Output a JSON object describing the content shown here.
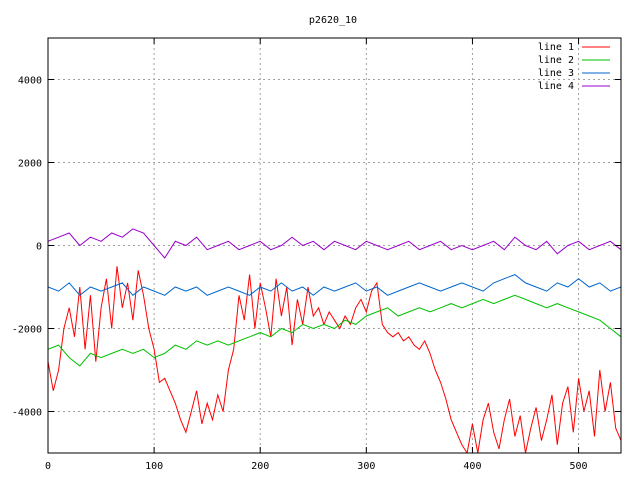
{
  "chart_data": {
    "type": "line",
    "title": "p2620_10",
    "xlabel": "",
    "ylabel": "",
    "xlim": [
      0,
      540
    ],
    "ylim": [
      -5000,
      5000
    ],
    "x_ticks": [
      0,
      100,
      200,
      300,
      400,
      500
    ],
    "y_ticks": [
      -4000,
      -2000,
      0,
      2000,
      4000
    ],
    "grid": true,
    "legend_position": "top-right",
    "series": [
      {
        "name": "line 1",
        "color": "#ff0000",
        "x": [
          0,
          5,
          10,
          15,
          20,
          25,
          30,
          35,
          40,
          45,
          50,
          55,
          60,
          65,
          70,
          75,
          80,
          85,
          90,
          95,
          100,
          105,
          110,
          115,
          120,
          125,
          130,
          135,
          140,
          145,
          150,
          155,
          160,
          165,
          170,
          175,
          180,
          185,
          190,
          195,
          200,
          205,
          210,
          215,
          220,
          225,
          230,
          235,
          240,
          245,
          250,
          255,
          260,
          265,
          270,
          275,
          280,
          285,
          290,
          295,
          300,
          305,
          310,
          315,
          320,
          325,
          330,
          335,
          340,
          345,
          350,
          355,
          360,
          365,
          370,
          375,
          380,
          385,
          390,
          395,
          400,
          405,
          410,
          415,
          420,
          425,
          430,
          435,
          440,
          445,
          450,
          455,
          460,
          465,
          470,
          475,
          480,
          485,
          490,
          495,
          500,
          505,
          510,
          515,
          520,
          525,
          530,
          535,
          540
        ],
        "values": [
          -2800,
          -3500,
          -3000,
          -2000,
          -1500,
          -2200,
          -1000,
          -2500,
          -1200,
          -2800,
          -1500,
          -800,
          -2000,
          -500,
          -1500,
          -900,
          -1800,
          -600,
          -1200,
          -2000,
          -2500,
          -3300,
          -3200,
          -3500,
          -3800,
          -4200,
          -4500,
          -4000,
          -3500,
          -4300,
          -3800,
          -4200,
          -3600,
          -4000,
          -3000,
          -2500,
          -1200,
          -1800,
          -700,
          -2000,
          -900,
          -1500,
          -2200,
          -800,
          -1700,
          -1000,
          -2400,
          -1300,
          -1900,
          -1000,
          -1700,
          -1500,
          -1900,
          -1600,
          -1800,
          -2000,
          -1700,
          -1900,
          -1500,
          -1300,
          -1600,
          -1100,
          -900,
          -1900,
          -2100,
          -2200,
          -2100,
          -2300,
          -2200,
          -2400,
          -2500,
          -2300,
          -2600,
          -3000,
          -3300,
          -3700,
          -4200,
          -4500,
          -4800,
          -5000,
          -4300,
          -5000,
          -4200,
          -3800,
          -4500,
          -4900,
          -4200,
          -3700,
          -4600,
          -4100,
          -5000,
          -4400,
          -3900,
          -4700,
          -4200,
          -3600,
          -4800,
          -3800,
          -3400,
          -4500,
          -3200,
          -4000,
          -3500,
          -4600,
          -3000,
          -4000,
          -3300,
          -4400,
          -4700
        ]
      },
      {
        "name": "line 2",
        "color": "#00c000",
        "x": [
          0,
          10,
          20,
          30,
          40,
          50,
          60,
          70,
          80,
          90,
          100,
          110,
          120,
          130,
          140,
          150,
          160,
          170,
          180,
          190,
          200,
          210,
          220,
          230,
          240,
          250,
          260,
          270,
          280,
          290,
          300,
          310,
          320,
          330,
          340,
          350,
          360,
          370,
          380,
          390,
          400,
          410,
          420,
          430,
          440,
          450,
          460,
          470,
          480,
          490,
          500,
          510,
          520,
          530,
          540
        ],
        "values": [
          -2500,
          -2400,
          -2700,
          -2900,
          -2600,
          -2700,
          -2600,
          -2500,
          -2600,
          -2500,
          -2700,
          -2600,
          -2400,
          -2500,
          -2300,
          -2400,
          -2300,
          -2400,
          -2300,
          -2200,
          -2100,
          -2200,
          -2000,
          -2100,
          -1900,
          -2000,
          -1900,
          -2000,
          -1800,
          -1900,
          -1700,
          -1600,
          -1500,
          -1700,
          -1600,
          -1500,
          -1600,
          -1500,
          -1400,
          -1500,
          -1400,
          -1300,
          -1400,
          -1300,
          -1200,
          -1300,
          -1400,
          -1500,
          -1400,
          -1500,
          -1600,
          -1700,
          -1800,
          -2000,
          -2200
        ]
      },
      {
        "name": "line 3",
        "color": "#0066cc",
        "x": [
          0,
          10,
          20,
          30,
          40,
          50,
          60,
          70,
          80,
          90,
          100,
          110,
          120,
          130,
          140,
          150,
          160,
          170,
          180,
          190,
          200,
          210,
          220,
          230,
          240,
          250,
          260,
          270,
          280,
          290,
          300,
          310,
          320,
          330,
          340,
          350,
          360,
          370,
          380,
          390,
          400,
          410,
          420,
          430,
          440,
          450,
          460,
          470,
          480,
          490,
          500,
          510,
          520,
          530,
          540
        ],
        "values": [
          -1000,
          -1100,
          -900,
          -1200,
          -1000,
          -1100,
          -1000,
          -900,
          -1200,
          -1000,
          -1100,
          -1200,
          -1000,
          -1100,
          -1000,
          -1200,
          -1100,
          -1000,
          -1100,
          -1200,
          -1000,
          -1100,
          -900,
          -1100,
          -1000,
          -1200,
          -1000,
          -1100,
          -1000,
          -900,
          -1100,
          -1000,
          -1200,
          -1100,
          -1000,
          -900,
          -1000,
          -1100,
          -1000,
          -900,
          -1000,
          -1100,
          -900,
          -800,
          -700,
          -900,
          -1000,
          -1100,
          -900,
          -1000,
          -800,
          -1000,
          -900,
          -1100,
          -1000
        ]
      },
      {
        "name": "line 4",
        "color": "#9900cc",
        "x": [
          0,
          10,
          20,
          30,
          40,
          50,
          60,
          70,
          80,
          90,
          100,
          110,
          120,
          130,
          140,
          150,
          160,
          170,
          180,
          190,
          200,
          210,
          220,
          230,
          240,
          250,
          260,
          270,
          280,
          290,
          300,
          310,
          320,
          330,
          340,
          350,
          360,
          370,
          380,
          390,
          400,
          410,
          420,
          430,
          440,
          450,
          460,
          470,
          480,
          490,
          500,
          510,
          520,
          530,
          540
        ],
        "values": [
          100,
          200,
          300,
          0,
          200,
          100,
          300,
          200,
          400,
          300,
          0,
          -300,
          100,
          0,
          200,
          -100,
          0,
          100,
          -100,
          0,
          100,
          -100,
          0,
          200,
          0,
          100,
          -100,
          100,
          0,
          -100,
          100,
          0,
          -100,
          0,
          100,
          -100,
          0,
          100,
          -100,
          0,
          -100,
          0,
          100,
          -100,
          200,
          0,
          -100,
          100,
          -200,
          0,
          100,
          -100,
          0,
          100,
          -100
        ]
      }
    ]
  }
}
